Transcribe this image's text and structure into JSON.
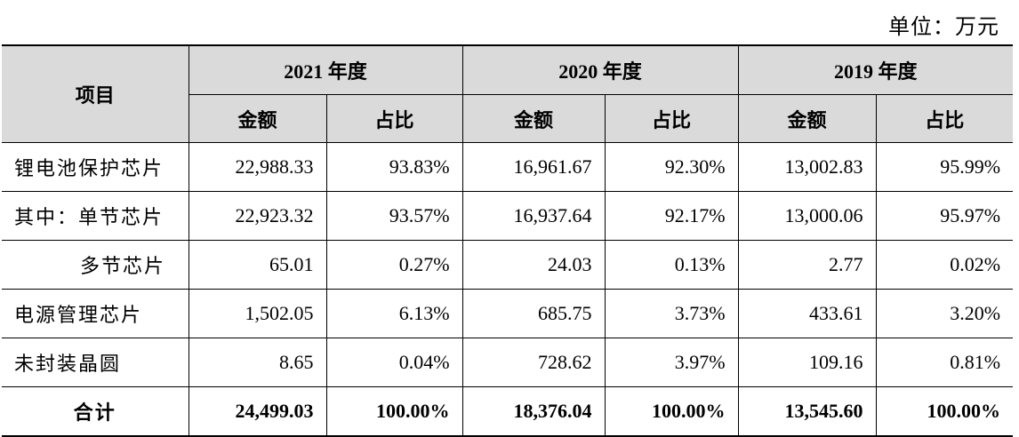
{
  "unit_label": "单位：万元",
  "header": {
    "item": "项目",
    "years": [
      "2021 年度",
      "2020 年度",
      "2019 年度"
    ],
    "amount": "金额",
    "ratio": "占比"
  },
  "rows": [
    {
      "label": "锂电池保护芯片",
      "v": [
        "22,988.33",
        "93.83%",
        "16,961.67",
        "92.30%",
        "13,002.83",
        "95.99%"
      ]
    },
    {
      "label": "其中：单节芯片",
      "v": [
        "22,923.32",
        "93.57%",
        "16,937.64",
        "92.17%",
        "13,000.06",
        "95.97%"
      ]
    },
    {
      "label": "多节芯片",
      "v": [
        "65.01",
        "0.27%",
        "24.03",
        "0.13%",
        "2.77",
        "0.02%"
      ]
    },
    {
      "label": "电源管理芯片",
      "v": [
        "1,502.05",
        "6.13%",
        "685.75",
        "3.73%",
        "433.61",
        "3.20%"
      ]
    },
    {
      "label": "未封装晶圆",
      "v": [
        "8.65",
        "0.04%",
        "728.62",
        "3.97%",
        "109.16",
        "0.81%"
      ]
    },
    {
      "label": "合计",
      "v": [
        "24,499.03",
        "100.00%",
        "18,376.04",
        "100.00%",
        "13,545.60",
        "100.00%"
      ]
    }
  ]
}
